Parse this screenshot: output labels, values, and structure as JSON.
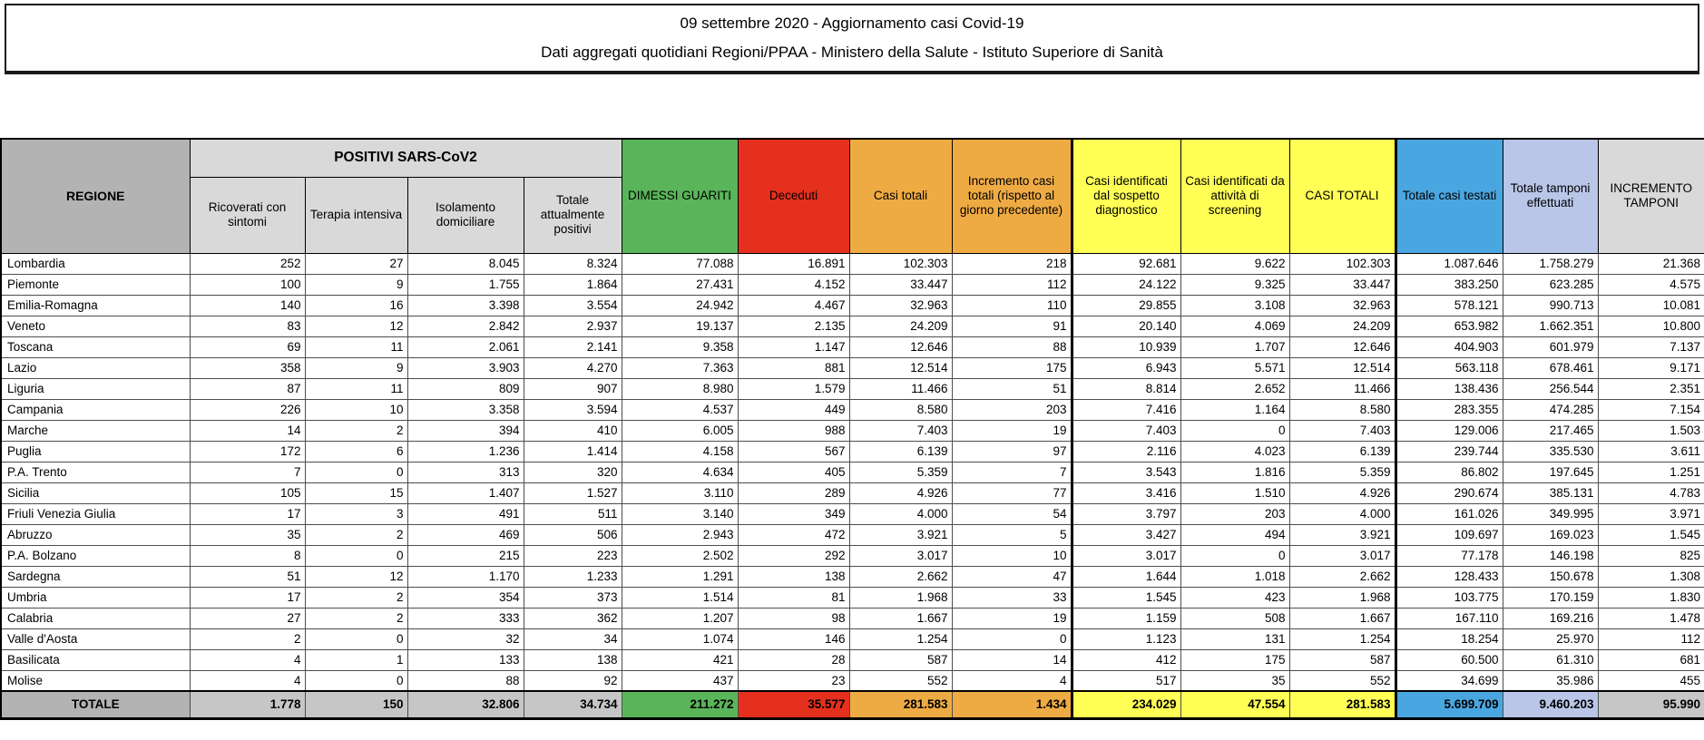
{
  "title_block": {
    "line1": "09 settembre 2020 - Aggiornamento casi Covid-19",
    "line2": "Dati aggregati quotidiani Regioni/PPAA - Ministero della Salute - Istituto Superiore di Sanità"
  },
  "colors": {
    "green": "#5ab55a",
    "red": "#e5301d",
    "orange": "#efab43",
    "yellow": "#ffff55",
    "blue": "#4aa6e0",
    "lavender": "#b9c6e8",
    "header_gray": "#b3b3b3",
    "subheader_gray": "#d9d9d9",
    "total_gray": "#c6c6c6"
  },
  "chart_data": {
    "type": "table",
    "header": {
      "region": "REGIONE",
      "positivi_group": "POSITIVI SARS-CoV2",
      "positivi_columns": [
        "Ricoverati con sintomi",
        "Terapia intensiva",
        "Isolamento domiciliare",
        "Totale attualmente positivi"
      ],
      "other_columns": [
        "DIMESSI GUARITI",
        "Deceduti",
        "Casi totali",
        "Incremento casi totali (rispetto al giorno precedente)",
        "Casi identificati dal sospetto diagnostico",
        "Casi identificati da attività di screening",
        "CASI TOTALI",
        "Totale casi testati",
        "Totale tamponi effettuati",
        "INCREMENTO TAMPONI"
      ]
    },
    "rows": [
      {
        "region": "Lombardia",
        "values": [
          "252",
          "27",
          "8.045",
          "8.324",
          "77.088",
          "16.891",
          "102.303",
          "218",
          "92.681",
          "9.622",
          "102.303",
          "1.087.646",
          "1.758.279",
          "21.368"
        ]
      },
      {
        "region": "Piemonte",
        "values": [
          "100",
          "9",
          "1.755",
          "1.864",
          "27.431",
          "4.152",
          "33.447",
          "112",
          "24.122",
          "9.325",
          "33.447",
          "383.250",
          "623.285",
          "4.575"
        ]
      },
      {
        "region": "Emilia-Romagna",
        "values": [
          "140",
          "16",
          "3.398",
          "3.554",
          "24.942",
          "4.467",
          "32.963",
          "110",
          "29.855",
          "3.108",
          "32.963",
          "578.121",
          "990.713",
          "10.081"
        ]
      },
      {
        "region": "Veneto",
        "values": [
          "83",
          "12",
          "2.842",
          "2.937",
          "19.137",
          "2.135",
          "24.209",
          "91",
          "20.140",
          "4.069",
          "24.209",
          "653.982",
          "1.662.351",
          "10.800"
        ]
      },
      {
        "region": "Toscana",
        "values": [
          "69",
          "11",
          "2.061",
          "2.141",
          "9.358",
          "1.147",
          "12.646",
          "88",
          "10.939",
          "1.707",
          "12.646",
          "404.903",
          "601.979",
          "7.137"
        ]
      },
      {
        "region": "Lazio",
        "values": [
          "358",
          "9",
          "3.903",
          "4.270",
          "7.363",
          "881",
          "12.514",
          "175",
          "6.943",
          "5.571",
          "12.514",
          "563.118",
          "678.461",
          "9.171"
        ]
      },
      {
        "region": "Liguria",
        "values": [
          "87",
          "11",
          "809",
          "907",
          "8.980",
          "1.579",
          "11.466",
          "51",
          "8.814",
          "2.652",
          "11.466",
          "138.436",
          "256.544",
          "2.351"
        ]
      },
      {
        "region": "Campania",
        "values": [
          "226",
          "10",
          "3.358",
          "3.594",
          "4.537",
          "449",
          "8.580",
          "203",
          "7.416",
          "1.164",
          "8.580",
          "283.355",
          "474.285",
          "7.154"
        ]
      },
      {
        "region": "Marche",
        "values": [
          "14",
          "2",
          "394",
          "410",
          "6.005",
          "988",
          "7.403",
          "19",
          "7.403",
          "0",
          "7.403",
          "129.006",
          "217.465",
          "1.503"
        ]
      },
      {
        "region": "Puglia",
        "values": [
          "172",
          "6",
          "1.236",
          "1.414",
          "4.158",
          "567",
          "6.139",
          "97",
          "2.116",
          "4.023",
          "6.139",
          "239.744",
          "335.530",
          "3.611"
        ]
      },
      {
        "region": "P.A. Trento",
        "values": [
          "7",
          "0",
          "313",
          "320",
          "4.634",
          "405",
          "5.359",
          "7",
          "3.543",
          "1.816",
          "5.359",
          "86.802",
          "197.645",
          "1.251"
        ]
      },
      {
        "region": "Sicilia",
        "values": [
          "105",
          "15",
          "1.407",
          "1.527",
          "3.110",
          "289",
          "4.926",
          "77",
          "3.416",
          "1.510",
          "4.926",
          "290.674",
          "385.131",
          "4.783"
        ]
      },
      {
        "region": "Friuli Venezia Giulia",
        "values": [
          "17",
          "3",
          "491",
          "511",
          "3.140",
          "349",
          "4.000",
          "54",
          "3.797",
          "203",
          "4.000",
          "161.026",
          "349.995",
          "3.971"
        ]
      },
      {
        "region": "Abruzzo",
        "values": [
          "35",
          "2",
          "469",
          "506",
          "2.943",
          "472",
          "3.921",
          "5",
          "3.427",
          "494",
          "3.921",
          "109.697",
          "169.023",
          "1.545"
        ]
      },
      {
        "region": "P.A. Bolzano",
        "values": [
          "8",
          "0",
          "215",
          "223",
          "2.502",
          "292",
          "3.017",
          "10",
          "3.017",
          "0",
          "3.017",
          "77.178",
          "146.198",
          "825"
        ]
      },
      {
        "region": "Sardegna",
        "values": [
          "51",
          "12",
          "1.170",
          "1.233",
          "1.291",
          "138",
          "2.662",
          "47",
          "1.644",
          "1.018",
          "2.662",
          "128.433",
          "150.678",
          "1.308"
        ]
      },
      {
        "region": "Umbria",
        "values": [
          "17",
          "2",
          "354",
          "373",
          "1.514",
          "81",
          "1.968",
          "33",
          "1.545",
          "423",
          "1.968",
          "103.775",
          "170.159",
          "1.830"
        ]
      },
      {
        "region": "Calabria",
        "values": [
          "27",
          "2",
          "333",
          "362",
          "1.207",
          "98",
          "1.667",
          "19",
          "1.159",
          "508",
          "1.667",
          "167.110",
          "169.216",
          "1.478"
        ]
      },
      {
        "region": "Valle d'Aosta",
        "values": [
          "2",
          "0",
          "32",
          "34",
          "1.074",
          "146",
          "1.254",
          "0",
          "1.123",
          "131",
          "1.254",
          "18.254",
          "25.970",
          "112"
        ]
      },
      {
        "region": "Basilicata",
        "values": [
          "4",
          "1",
          "133",
          "138",
          "421",
          "28",
          "587",
          "14",
          "412",
          "175",
          "587",
          "60.500",
          "61.310",
          "681"
        ]
      },
      {
        "region": "Molise",
        "values": [
          "4",
          "0",
          "88",
          "92",
          "437",
          "23",
          "552",
          "4",
          "517",
          "35",
          "552",
          "34.699",
          "35.986",
          "455"
        ]
      }
    ],
    "total_row": {
      "region": "TOTALE",
      "values": [
        "1.778",
        "150",
        "32.806",
        "34.734",
        "211.272",
        "35.577",
        "281.583",
        "1.434",
        "234.029",
        "47.554",
        "281.583",
        "5.699.709",
        "9.460.203",
        "95.990"
      ]
    }
  }
}
